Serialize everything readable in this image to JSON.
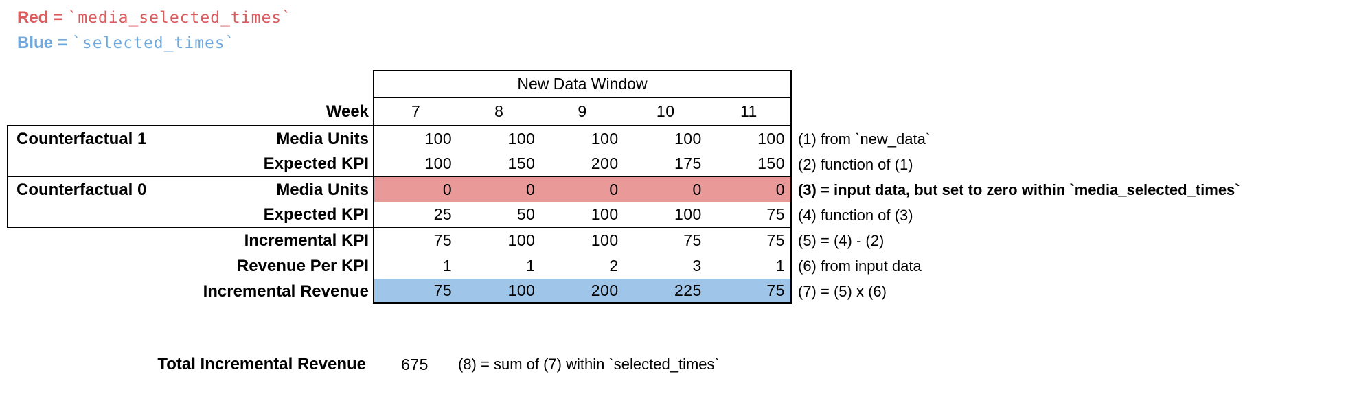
{
  "colors": {
    "red_fill": "#EA9999",
    "blue_fill": "#9FC5E8",
    "red_text": "#DB5C5C",
    "blue_text": "#6FA8DC"
  },
  "legend": {
    "red": {
      "label": "Red",
      "eq": "=",
      "code": "`media_selected_times`"
    },
    "blue": {
      "label": "Blue",
      "eq": "=",
      "code": "`selected_times`"
    }
  },
  "table": {
    "window_header": "New Data Window",
    "week_label": "Week",
    "weeks": [
      "7",
      "8",
      "9",
      "10",
      "11"
    ],
    "rows": [
      {
        "section": "Counterfactual 1",
        "label": "Media Units",
        "values": [
          "100",
          "100",
          "100",
          "100",
          "100"
        ],
        "highlight": "none",
        "annotation": "(1) from `new_data`",
        "annotation_bold": false
      },
      {
        "section": "",
        "label": "Expected KPI",
        "values": [
          "100",
          "150",
          "200",
          "175",
          "150"
        ],
        "highlight": "none",
        "annotation": "(2) function of (1)",
        "annotation_bold": false
      },
      {
        "section": "Counterfactual 0",
        "label": "Media Units",
        "values": [
          "0",
          "0",
          "0",
          "0",
          "0"
        ],
        "highlight": "red",
        "annotation": "(3) = input data, but set to zero within `media_selected_times`",
        "annotation_bold": true
      },
      {
        "section": "",
        "label": "Expected KPI",
        "values": [
          "25",
          "50",
          "100",
          "100",
          "75"
        ],
        "highlight": "none",
        "annotation": "(4) function of (3)",
        "annotation_bold": false
      },
      {
        "section": "",
        "label": "Incremental KPI",
        "values": [
          "75",
          "100",
          "100",
          "75",
          "75"
        ],
        "highlight": "none",
        "annotation": "(5) = (4) - (2)",
        "annotation_bold": false
      },
      {
        "section": "",
        "label": "Revenue Per KPI",
        "values": [
          "1",
          "1",
          "2",
          "3",
          "1"
        ],
        "highlight": "none",
        "annotation": "(6) from input data",
        "annotation_bold": false
      },
      {
        "section": "",
        "label": "Incremental Revenue",
        "values": [
          "75",
          "100",
          "200",
          "225",
          "75"
        ],
        "highlight": "blue",
        "annotation": "(7) = (5) x (6)",
        "annotation_bold": false
      }
    ]
  },
  "total": {
    "label": "Total Incremental Revenue",
    "value": "675",
    "annotation": "(8) = sum of (7) within `selected_times`"
  }
}
